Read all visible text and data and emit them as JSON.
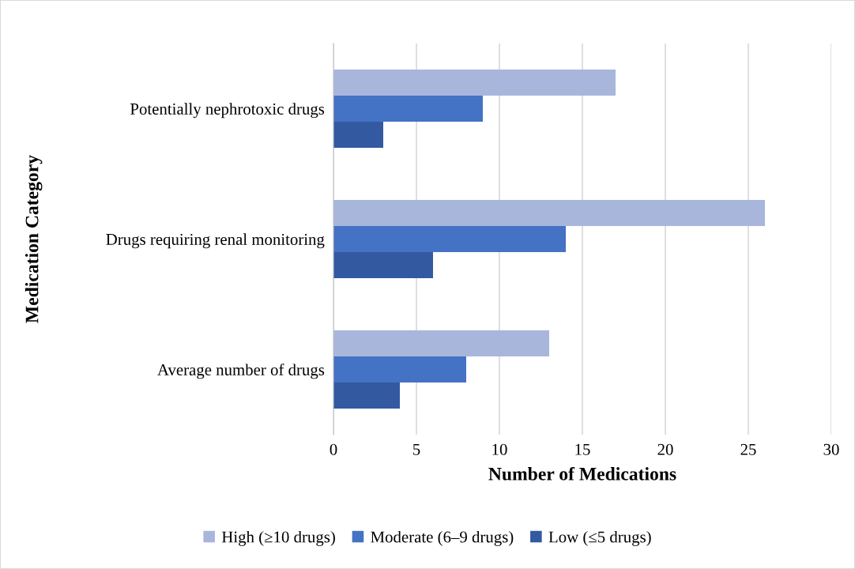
{
  "chart_data": {
    "type": "bar",
    "orientation": "horizontal",
    "xlabel": "Number of Medications",
    "ylabel": "Medication Category",
    "categories": [
      "Potentially nephrotoxic drugs",
      "Drugs requiring renal monitoring",
      "Average number of drugs"
    ],
    "series": [
      {
        "name": "High (≥10 drugs)",
        "color": "#a9b6dc",
        "values": [
          17,
          26,
          13
        ]
      },
      {
        "name": "Moderate (6–9 drugs)",
        "color": "#4472c4",
        "values": [
          9,
          14,
          8
        ]
      },
      {
        "name": "Low (≤5 drugs)",
        "color": "#335aa1",
        "values": [
          3,
          6,
          4
        ]
      }
    ],
    "xlim": [
      0,
      30
    ],
    "xticks": [
      0,
      5,
      10,
      15,
      20,
      25,
      30
    ],
    "grid": "x",
    "legend": "bottom"
  }
}
